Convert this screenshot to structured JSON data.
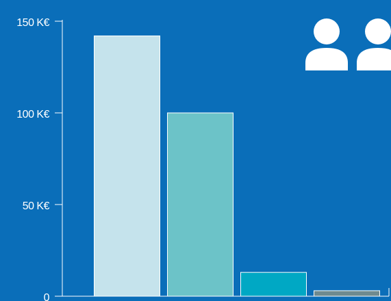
{
  "chart_data": {
    "type": "bar",
    "categories": [
      null,
      null,
      null,
      null
    ],
    "values": [
      142,
      100,
      13,
      3
    ],
    "colors": [
      "#c5e3ec",
      "#6cc3c8",
      "#00a8c4",
      "#6f8a8f"
    ],
    "ylim": [
      0,
      150
    ],
    "yticks": [
      0,
      {
        "value": 50,
        "label": "50 K€"
      },
      {
        "value": 100,
        "label": "100 K€"
      },
      {
        "value": 150,
        "label": "150 K€"
      }
    ],
    "grid": false
  }
}
